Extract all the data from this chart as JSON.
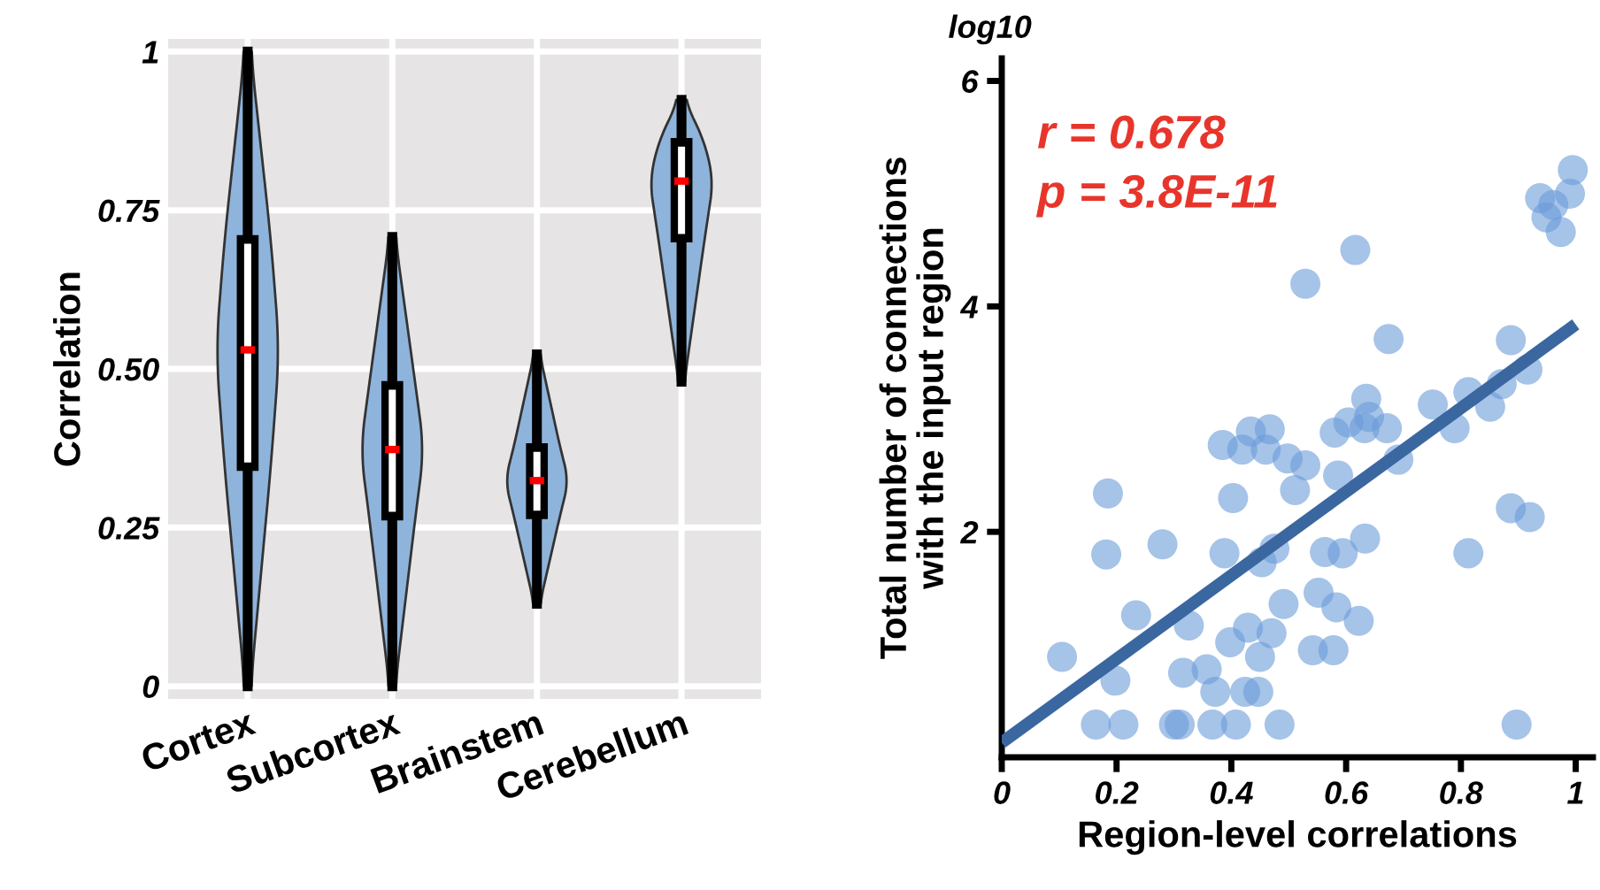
{
  "chart_data": [
    {
      "type": "box",
      "ylabel": "Correlation",
      "categories": [
        "Cortex",
        "Subcortex",
        "Brainstem",
        "Cerebellum"
      ],
      "ylim": [
        -0.02,
        1.02
      ],
      "yticks": [
        0,
        {
          "value": 0.25,
          "label": "0.25"
        },
        {
          "value": 0.5,
          "label": "0.50"
        },
        {
          "value": 0.75,
          "label": "0.75"
        },
        1
      ],
      "grid": true,
      "boxes": [
        {
          "low": 0,
          "q1": 0.345,
          "median": 0.53,
          "q3": 0.705,
          "high": 1
        },
        {
          "low": 0,
          "q1": 0.267,
          "median": 0.373,
          "q3": 0.475,
          "high": 0.708
        },
        {
          "low": 0.13,
          "q1": 0.269,
          "median": 0.324,
          "q3": 0.377,
          "high": 0.523
        },
        {
          "low": 0.48,
          "q1": 0.705,
          "median": 0.796,
          "q3": 0.858,
          "high": 0.924
        }
      ]
    },
    {
      "type": "scatter",
      "xlabel": "Region-level correlations",
      "ylabel": "Total number of connections\nwith the input region",
      "annotations": [
        "log10",
        "r = 0.678",
        "p = 3.8E-11"
      ],
      "xlim": [
        0,
        1.03
      ],
      "xticks": [
        0,
        0.2,
        0.4,
        0.6,
        0.8,
        1
      ],
      "ylim": [
        0,
        6.2
      ],
      "yticks": [
        2,
        4,
        6
      ],
      "grid": false,
      "series": [
        {
          "type": "scatter",
          "marker": "circle",
          "color": "#6a9bd8",
          "x": [
            0.105,
            0.164,
            0.212,
            0.185,
            0.182,
            0.198,
            0.234,
            0.28,
            0.3,
            0.31,
            0.316,
            0.326,
            0.357,
            0.367,
            0.372,
            0.385,
            0.388,
            0.398,
            0.403,
            0.408,
            0.419,
            0.424,
            0.429,
            0.434,
            0.447,
            0.45,
            0.453,
            0.46,
            0.467,
            0.47,
            0.475,
            0.484,
            0.491,
            0.498,
            0.511,
            0.529,
            0.529,
            0.542,
            0.552,
            0.563,
            0.578,
            0.583,
            0.586,
            0.58,
            0.594,
            0.604,
            0.616,
            0.622,
            0.633,
            0.632,
            0.635,
            0.64,
            0.671,
            0.674,
            0.691,
            0.751,
            0.789,
            0.813,
            0.813,
            0.851,
            0.871,
            0.887,
            0.887,
            0.897,
            0.916,
            0.92,
            0.938,
            0.949,
            0.961,
            0.974,
            0.99,
            0.995
          ],
          "values": [
            0.89,
            0.29,
            0.29,
            2.34,
            1.8,
            0.68,
            1.26,
            1.89,
            0.29,
            0.29,
            0.75,
            1.17,
            0.78,
            0.29,
            0.58,
            2.77,
            1.81,
            1.02,
            2.3,
            0.29,
            2.73,
            0.58,
            1.15,
            2.89,
            0.58,
            0.89,
            1.73,
            2.73,
            2.91,
            1.1,
            1.85,
            0.29,
            1.36,
            2.65,
            2.37,
            2.59,
            4.2,
            0.95,
            1.46,
            1.82,
            0.95,
            1.33,
            2.5,
            2.88,
            1.81,
            2.97,
            4.5,
            1.21,
            1.94,
            2.92,
            3.18,
            3.02,
            2.92,
            3.71,
            2.64,
            3.13,
            2.92,
            3.24,
            1.81,
            3.11,
            3.31,
            3.7,
            2.21,
            0.29,
            3.44,
            2.13,
            4.96,
            4.79,
            4.9,
            4.66,
            5.0,
            5.21
          ]
        },
        {
          "type": "line",
          "color": "#3b67a0",
          "x": [
            0,
            1
          ],
          "values": [
            0.13,
            3.84
          ]
        }
      ]
    }
  ]
}
